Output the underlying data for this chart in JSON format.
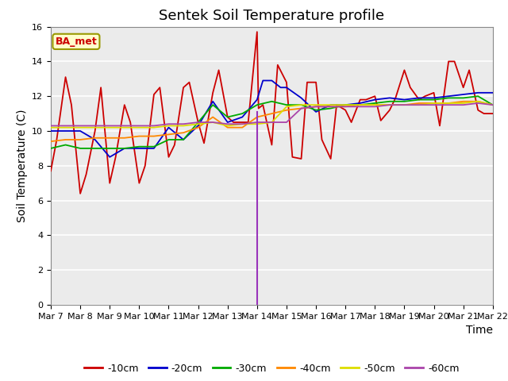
{
  "title": "Sentek Soil Temperature profile",
  "xlabel": "Time",
  "ylabel": "Soil Temperature (C)",
  "ylim": [
    0,
    16
  ],
  "xlim": [
    0,
    15
  ],
  "xtick_labels": [
    "Mar 7",
    "Mar 8",
    "Mar 9",
    "Mar 10",
    "Mar 11",
    "Mar 12",
    "Mar 13",
    "Mar 14",
    "Mar 15",
    "Mar 16",
    "Mar 17",
    "Mar 18",
    "Mar 19",
    "Mar 20",
    "Mar 21",
    "Mar 22"
  ],
  "annotation_label": "BA_met",
  "vline_x": 7,
  "vline_ymin": 0.0,
  "vline_ymax": 11.1,
  "series": {
    "-10cm": {
      "color": "#cc0000",
      "x": [
        0,
        0.2,
        0.5,
        0.7,
        1.0,
        1.2,
        1.5,
        1.7,
        2.0,
        2.2,
        2.5,
        2.7,
        3.0,
        3.2,
        3.5,
        3.7,
        4.0,
        4.2,
        4.5,
        4.7,
        5.0,
        5.2,
        5.5,
        5.7,
        6.0,
        6.2,
        6.5,
        6.7,
        7.0,
        7.05,
        7.2,
        7.5,
        7.7,
        8.0,
        8.2,
        8.5,
        8.7,
        9.0,
        9.2,
        9.5,
        9.7,
        10.0,
        10.2,
        10.5,
        10.7,
        11.0,
        11.2,
        11.5,
        11.7,
        12.0,
        12.2,
        12.5,
        12.7,
        13.0,
        13.2,
        13.5,
        13.7,
        14.0,
        14.2,
        14.5,
        14.7,
        15.0
      ],
      "y": [
        7.7,
        9.5,
        13.1,
        11.5,
        6.4,
        7.5,
        10.0,
        12.5,
        7.0,
        8.5,
        11.5,
        10.5,
        7.0,
        8.0,
        12.1,
        12.5,
        8.5,
        9.2,
        12.5,
        12.8,
        10.5,
        9.3,
        12.2,
        13.5,
        10.8,
        10.5,
        10.5,
        10.5,
        15.7,
        11.3,
        11.5,
        9.2,
        13.8,
        12.8,
        8.5,
        8.4,
        12.8,
        12.8,
        9.5,
        8.4,
        11.5,
        11.2,
        10.5,
        11.8,
        11.8,
        12.0,
        10.6,
        11.2,
        11.9,
        13.5,
        12.5,
        11.8,
        12.0,
        12.2,
        10.3,
        14.0,
        14.0,
        12.5,
        13.5,
        11.2,
        11.0,
        11.0
      ]
    },
    "-20cm": {
      "color": "#0000cc",
      "x": [
        0,
        0.5,
        1.0,
        1.5,
        2.0,
        2.5,
        3.0,
        3.5,
        4.0,
        4.5,
        5.0,
        5.5,
        6.0,
        6.5,
        7.0,
        7.2,
        7.5,
        7.8,
        8.0,
        8.5,
        9.0,
        9.5,
        10.0,
        10.5,
        11.0,
        11.5,
        12.0,
        12.5,
        13.0,
        13.5,
        14.0,
        14.5,
        15.0
      ],
      "y": [
        10.0,
        10.0,
        10.0,
        9.5,
        8.5,
        9.0,
        9.0,
        9.0,
        10.2,
        9.5,
        10.3,
        11.7,
        10.5,
        10.8,
        11.8,
        12.9,
        12.9,
        12.5,
        12.5,
        11.9,
        11.1,
        11.5,
        11.5,
        11.6,
        11.8,
        11.9,
        11.8,
        11.9,
        11.9,
        12.0,
        12.1,
        12.2,
        12.2
      ]
    },
    "-30cm": {
      "color": "#00aa00",
      "x": [
        0,
        0.5,
        1.0,
        1.5,
        2.0,
        2.5,
        3.0,
        3.5,
        4.0,
        4.5,
        5.0,
        5.5,
        6.0,
        6.5,
        7.0,
        7.5,
        8.0,
        8.5,
        9.0,
        9.5,
        10.0,
        10.5,
        11.0,
        11.5,
        12.0,
        12.5,
        13.0,
        13.5,
        14.0,
        14.5,
        15.0
      ],
      "y": [
        9.0,
        9.2,
        9.0,
        9.0,
        9.0,
        9.0,
        9.1,
        9.1,
        9.5,
        9.5,
        10.5,
        11.5,
        10.8,
        11.0,
        11.5,
        11.7,
        11.5,
        11.5,
        11.2,
        11.3,
        11.5,
        11.5,
        11.6,
        11.7,
        11.7,
        11.8,
        11.8,
        11.9,
        11.9,
        12.0,
        11.5
      ]
    },
    "-40cm": {
      "color": "#ff8800",
      "x": [
        0,
        0.5,
        1.0,
        1.5,
        2.0,
        2.5,
        3.0,
        3.5,
        4.0,
        4.5,
        5.0,
        5.5,
        6.0,
        6.5,
        7.0,
        7.5,
        8.0,
        8.5,
        9.0,
        9.5,
        10.0,
        10.5,
        11.0,
        11.5,
        12.0,
        12.5,
        13.0,
        13.5,
        14.0,
        14.5,
        15.0
      ],
      "y": [
        9.4,
        9.5,
        9.5,
        9.6,
        9.6,
        9.6,
        9.7,
        9.7,
        9.8,
        9.9,
        10.2,
        10.8,
        10.2,
        10.2,
        10.8,
        11.0,
        11.2,
        11.3,
        11.4,
        11.4,
        11.4,
        11.5,
        11.5,
        11.5,
        11.5,
        11.6,
        11.6,
        11.6,
        11.7,
        11.7,
        11.5
      ]
    },
    "-50cm": {
      "color": "#dddd00",
      "x": [
        0,
        0.5,
        1.0,
        1.5,
        2.0,
        2.5,
        3.0,
        3.5,
        4.0,
        4.5,
        5.0,
        5.5,
        6.0,
        6.5,
        7.0,
        7.5,
        8.0,
        8.5,
        9.0,
        9.5,
        10.0,
        10.5,
        11.0,
        11.5,
        12.0,
        12.5,
        13.0,
        13.5,
        14.0,
        14.5,
        15.0
      ],
      "y": [
        10.2,
        10.2,
        10.2,
        10.2,
        10.2,
        10.2,
        10.2,
        10.2,
        10.3,
        10.3,
        10.4,
        10.5,
        10.3,
        10.4,
        10.4,
        10.5,
        11.4,
        11.5,
        11.5,
        11.5,
        11.5,
        11.5,
        11.5,
        11.5,
        11.5,
        11.5,
        11.6,
        11.6,
        11.6,
        11.7,
        11.5
      ]
    },
    "-60cm": {
      "color": "#aa44aa",
      "x": [
        0,
        0.5,
        1.0,
        1.5,
        2.0,
        2.5,
        3.0,
        3.5,
        4.0,
        4.5,
        5.0,
        5.5,
        6.0,
        6.5,
        7.0,
        7.5,
        8.0,
        8.5,
        9.0,
        9.5,
        10.0,
        10.5,
        11.0,
        11.5,
        12.0,
        12.5,
        13.0,
        13.5,
        14.0,
        14.5,
        15.0
      ],
      "y": [
        10.3,
        10.3,
        10.3,
        10.3,
        10.3,
        10.3,
        10.3,
        10.3,
        10.4,
        10.4,
        10.5,
        10.5,
        10.4,
        10.4,
        10.5,
        10.5,
        10.5,
        11.3,
        11.4,
        11.4,
        11.4,
        11.4,
        11.4,
        11.5,
        11.5,
        11.5,
        11.5,
        11.5,
        11.5,
        11.6,
        11.5
      ]
    }
  },
  "legend_entries": [
    "-10cm",
    "-20cm",
    "-30cm",
    "-40cm",
    "-50cm",
    "-60cm"
  ],
  "legend_colors": [
    "#cc0000",
    "#0000cc",
    "#00aa00",
    "#ff8800",
    "#dddd00",
    "#aa44aa"
  ],
  "plot_bg_color": "#ebebeb",
  "fig_bg_color": "#ffffff",
  "grid_color": "#ffffff",
  "title_fontsize": 13,
  "axis_fontsize": 10,
  "tick_fontsize": 8
}
